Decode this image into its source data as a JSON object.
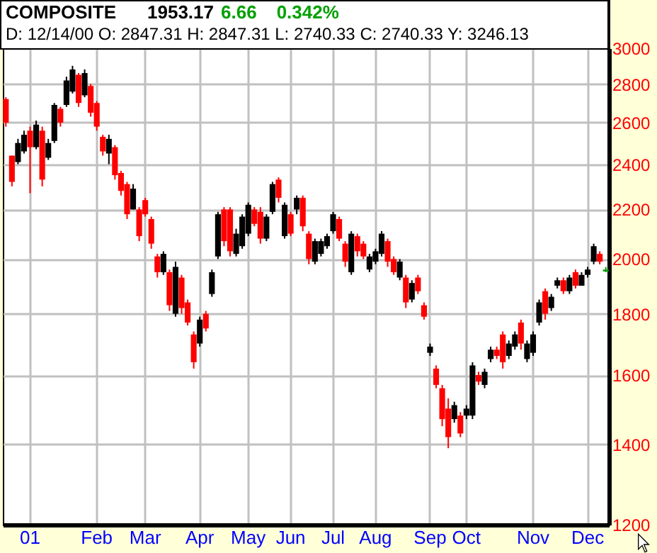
{
  "chart_data": {
    "type": "candlestick",
    "title": "COMPOSITE",
    "annotations": [
      "1953.17",
      "6.66",
      "0.342%",
      "D: 12/14/00 O: 2847.31 H: 2847.31 L: 2740.33 C: 2740.33 Y: 3246.13"
    ],
    "categories": [
      null,
      null,
      null,
      null,
      "01",
      null,
      null,
      null,
      null,
      null,
      null,
      null,
      null,
      null,
      null,
      "Feb",
      null,
      null,
      null,
      null,
      null,
      null,
      null,
      "Mar",
      null,
      null,
      null,
      null,
      null,
      null,
      null,
      null,
      "Apr",
      null,
      null,
      null,
      null,
      null,
      null,
      null,
      "May",
      null,
      null,
      null,
      null,
      null,
      null,
      "Jun",
      null,
      null,
      null,
      null,
      null,
      null,
      "Jul",
      null,
      null,
      null,
      null,
      null,
      null,
      "Aug",
      null,
      null,
      null,
      null,
      null,
      null,
      null,
      null,
      "Sep",
      null,
      null,
      null,
      null,
      null,
      "Oct",
      null,
      null,
      null,
      null,
      null,
      null,
      null,
      null,
      null,
      null,
      "Nov",
      null,
      null,
      null,
      null,
      null,
      null,
      null,
      null,
      "Dec",
      null,
      null,
      null
    ],
    "ohlc": [
      [
        2720,
        2730,
        2580,
        2600
      ],
      [
        2440,
        2440,
        2300,
        2320
      ],
      [
        2410,
        2520,
        2400,
        2500
      ],
      [
        2460,
        2560,
        2450,
        2540
      ],
      [
        2560,
        2580,
        2270,
        2480
      ],
      [
        2480,
        2610,
        2470,
        2590
      ],
      [
        2560,
        2580,
        2300,
        2330
      ],
      [
        2430,
        2520,
        2420,
        2500
      ],
      [
        2510,
        2700,
        2500,
        2690
      ],
      [
        2670,
        2680,
        2580,
        2600
      ],
      [
        2690,
        2840,
        2680,
        2820
      ],
      [
        2760,
        2900,
        2750,
        2880
      ],
      [
        2850,
        2860,
        2680,
        2700
      ],
      [
        2740,
        2880,
        2730,
        2860
      ],
      [
        2790,
        2800,
        2630,
        2650
      ],
      [
        2700,
        2710,
        2560,
        2580
      ],
      [
        2530,
        2540,
        2440,
        2460
      ],
      [
        2450,
        2540,
        2400,
        2520
      ],
      [
        2480,
        2490,
        2330,
        2350
      ],
      [
        2360,
        2370,
        2260,
        2280
      ],
      [
        2310,
        2320,
        2160,
        2180
      ],
      [
        2200,
        2310,
        2200,
        2290
      ],
      [
        2200,
        2210,
        2070,
        2090
      ],
      [
        2240,
        2250,
        2170,
        2180
      ],
      [
        2160,
        2170,
        2040,
        2060
      ],
      [
        2010,
        2020,
        1930,
        1950
      ],
      [
        1950,
        2030,
        1940,
        2020
      ],
      [
        1950,
        1960,
        1810,
        1830
      ],
      [
        1800,
        1990,
        1790,
        1970
      ],
      [
        1930,
        1940,
        1800,
        1820
      ],
      [
        1840,
        1850,
        1760,
        1770
      ],
      [
        1730,
        1740,
        1620,
        1640
      ],
      [
        1700,
        1790,
        1690,
        1780
      ],
      [
        1800,
        1810,
        1740,
        1750
      ],
      [
        1870,
        1960,
        1860,
        1950
      ],
      [
        2010,
        2190,
        2000,
        2180
      ],
      [
        2200,
        2210,
        2050,
        2070
      ],
      [
        2200,
        2210,
        2010,
        2030
      ],
      [
        2020,
        2120,
        2010,
        2100
      ],
      [
        2050,
        2180,
        2040,
        2170
      ],
      [
        2100,
        2230,
        2090,
        2220
      ],
      [
        2200,
        2210,
        2130,
        2140
      ],
      [
        2190,
        2210,
        2060,
        2080
      ],
      [
        2080,
        2180,
        2070,
        2170
      ],
      [
        2190,
        2320,
        2180,
        2310
      ],
      [
        2330,
        2340,
        2230,
        2250
      ],
      [
        2090,
        2230,
        2080,
        2220
      ],
      [
        2180,
        2190,
        2090,
        2100
      ],
      [
        2200,
        2260,
        2180,
        2250
      ],
      [
        2250,
        2260,
        2110,
        2130
      ],
      [
        2100,
        2110,
        1980,
        2000
      ],
      [
        1990,
        2080,
        1980,
        2070
      ],
      [
        2020,
        2080,
        2010,
        2070
      ],
      [
        2050,
        2100,
        2040,
        2090
      ],
      [
        2110,
        2190,
        2100,
        2180
      ],
      [
        2160,
        2170,
        2070,
        2080
      ],
      [
        2060,
        2070,
        1970,
        1990
      ],
      [
        1950,
        2110,
        1940,
        2100
      ],
      [
        2090,
        2100,
        2010,
        2030
      ],
      [
        2060,
        2070,
        2000,
        2010
      ],
      [
        1960,
        2020,
        1950,
        2010
      ],
      [
        1990,
        2040,
        1980,
        2030
      ],
      [
        2020,
        2110,
        2010,
        2100
      ],
      [
        2070,
        2080,
        1970,
        1990
      ],
      [
        2000,
        2010,
        1940,
        1950
      ],
      [
        1930,
        2000,
        1920,
        1990
      ],
      [
        1930,
        1940,
        1820,
        1840
      ],
      [
        1850,
        1920,
        1840,
        1910
      ],
      [
        1930,
        1940,
        1870,
        1880
      ],
      [
        1830,
        1840,
        1780,
        1790
      ],
      [
        1670,
        1700,
        1660,
        1690
      ],
      [
        1620,
        1630,
        1560,
        1570
      ],
      [
        1560,
        1570,
        1450,
        1470
      ],
      [
        1500,
        1530,
        1390,
        1420
      ],
      [
        1470,
        1520,
        1460,
        1510
      ],
      [
        1480,
        1490,
        1420,
        1430
      ],
      [
        1480,
        1510,
        1470,
        1500
      ],
      [
        1480,
        1640,
        1470,
        1630
      ],
      [
        1600,
        1610,
        1570,
        1580
      ],
      [
        1570,
        1620,
        1560,
        1610
      ],
      [
        1650,
        1690,
        1640,
        1680
      ],
      [
        1680,
        1690,
        1650,
        1660
      ],
      [
        1730,
        1740,
        1620,
        1640
      ],
      [
        1660,
        1710,
        1650,
        1700
      ],
      [
        1690,
        1740,
        1680,
        1730
      ],
      [
        1770,
        1780,
        1680,
        1700
      ],
      [
        1650,
        1710,
        1640,
        1700
      ],
      [
        1670,
        1740,
        1660,
        1730
      ],
      [
        1770,
        1850,
        1760,
        1840
      ],
      [
        1880,
        1890,
        1780,
        1800
      ],
      [
        1820,
        1870,
        1810,
        1860
      ],
      [
        1900,
        1930,
        1890,
        1920
      ],
      [
        1920,
        1930,
        1870,
        1880
      ],
      [
        1880,
        1940,
        1870,
        1930
      ],
      [
        1950,
        1960,
        1890,
        1900
      ],
      [
        1900,
        1950,
        1900,
        1940
      ],
      [
        1940,
        1970,
        1930,
        1960
      ],
      [
        1990,
        2060,
        1980,
        2050
      ],
      [
        2020,
        2030,
        1980,
        1990
      ],
      [
        1960,
        1970,
        1950,
        1953
      ]
    ],
    "colors": [
      "#ff0000",
      "#ff0000",
      "#000000",
      "#000000",
      "#ff0000",
      "#000000",
      "#ff0000",
      "#000000",
      "#000000",
      "#ff0000",
      "#000000",
      "#000000",
      "#ff0000",
      "#000000",
      "#ff0000",
      "#ff0000",
      "#ff0000",
      "#000000",
      "#ff0000",
      "#ff0000",
      "#ff0000",
      "#000000",
      "#ff0000",
      "#ff0000",
      "#ff0000",
      "#ff0000",
      "#000000",
      "#ff0000",
      "#000000",
      "#ff0000",
      "#ff0000",
      "#ff0000",
      "#000000",
      "#ff0000",
      "#000000",
      "#000000",
      "#ff0000",
      "#ff0000",
      "#000000",
      "#000000",
      "#000000",
      "#ff0000",
      "#ff0000",
      "#000000",
      "#000000",
      "#ff0000",
      "#000000",
      "#ff0000",
      "#000000",
      "#ff0000",
      "#ff0000",
      "#000000",
      "#000000",
      "#000000",
      "#000000",
      "#ff0000",
      "#ff0000",
      "#000000",
      "#ff0000",
      "#ff0000",
      "#000000",
      "#000000",
      "#000000",
      "#ff0000",
      "#ff0000",
      "#000000",
      "#ff0000",
      "#000000",
      "#ff0000",
      "#ff0000",
      "#000000",
      "#ff0000",
      "#ff0000",
      "#ff0000",
      "#000000",
      "#ff0000",
      "#000000",
      "#000000",
      "#ff0000",
      "#000000",
      "#000000",
      "#ff0000",
      "#ff0000",
      "#000000",
      "#000000",
      "#ff0000",
      "#000000",
      "#000000",
      "#000000",
      "#ff0000",
      "#000000",
      "#000000",
      "#ff0000",
      "#000000",
      "#ff0000",
      "#000000",
      "#000000",
      "#000000",
      "#ff0000",
      "#00a000"
    ],
    "log": "y",
    "ylim": [
      1200,
      3000
    ],
    "yticks": [
      1200,
      1400,
      1600,
      1800,
      2000,
      2200,
      2400,
      2600,
      2800,
      3000
    ],
    "grid": true
  }
}
